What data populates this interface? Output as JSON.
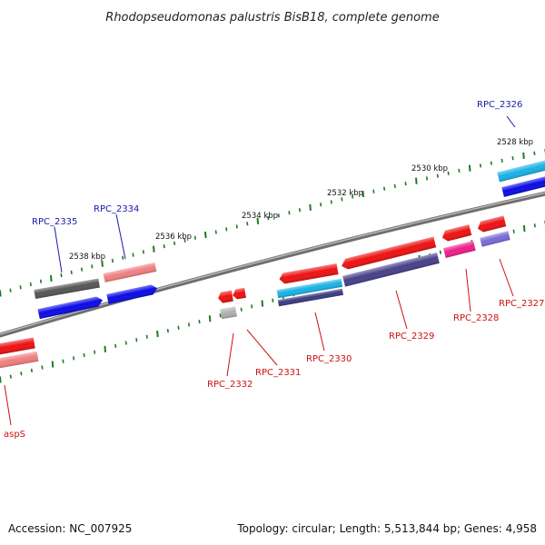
{
  "title": "Rhodopseudomonas palustris BisB18, complete genome",
  "footer": {
    "accession": "Accession: NC_007925",
    "summary": "Topology: circular; Length: 5,513,844 bp; Genes: 4,958"
  },
  "colors": {
    "backbone": "#8a8a8a",
    "tick": "#1e7b1e",
    "label_forward": "#1a1aaa",
    "label_reverse": "#cc1111"
  },
  "ruler": [
    "2528 kbp",
    "2530 kbp",
    "2532 kbp",
    "2534 kbp",
    "2536 kbp",
    "2538 kbp"
  ],
  "gene_labels": {
    "forward": [
      "RPC_2326",
      "RPC_2334",
      "RPC_2335"
    ],
    "reverse": [
      "RPC_2327",
      "RPC_2328",
      "RPC_2329",
      "RPC_2330",
      "RPC_2331",
      "RPC_2332",
      "aspS"
    ]
  }
}
